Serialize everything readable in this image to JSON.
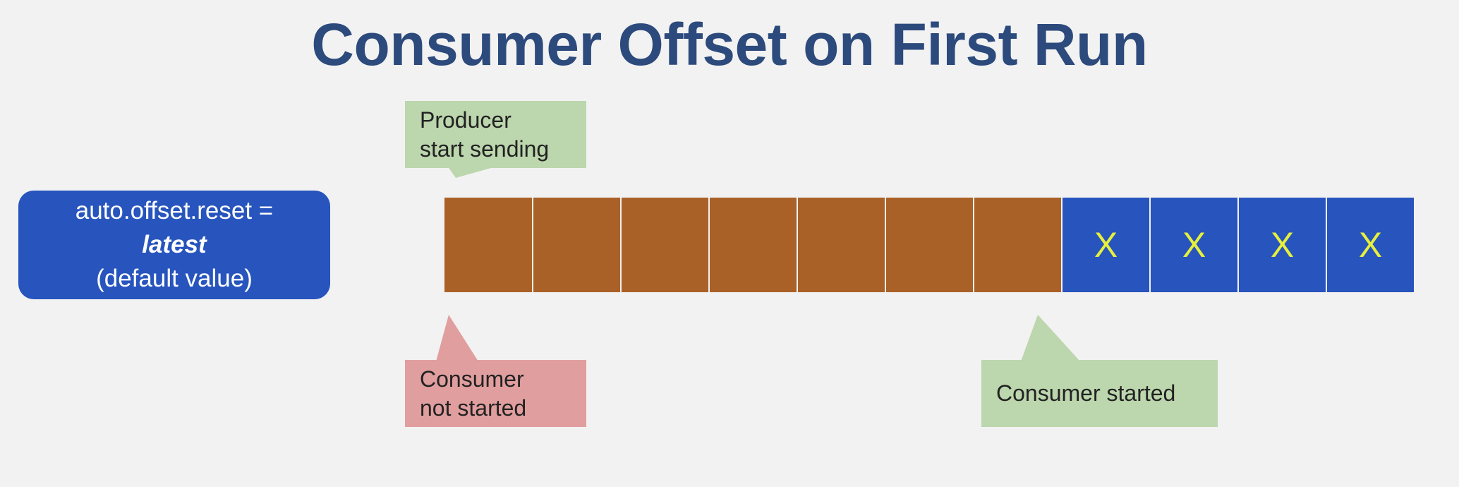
{
  "title": "Consumer Offset on First Run",
  "setting": {
    "line1": "auto.offset.reset =",
    "value": "latest",
    "line3": "(default value)"
  },
  "colors": {
    "title": "#2c4a7c",
    "existing_messages": "#aa6127",
    "new_messages": "#2754bd",
    "new_message_mark": "#e6f03c",
    "callout_green": "#bcd6ad",
    "callout_red": "#e19e9e"
  },
  "messages": {
    "existing_count": 7,
    "new": [
      "X",
      "X",
      "X",
      "X"
    ]
  },
  "callouts": {
    "producer": {
      "line1": "Producer",
      "line2": "start sending"
    },
    "consumer_not_started": {
      "line1": "Consumer",
      "line2": "not started"
    },
    "consumer_started": {
      "text": "Consumer started"
    }
  }
}
